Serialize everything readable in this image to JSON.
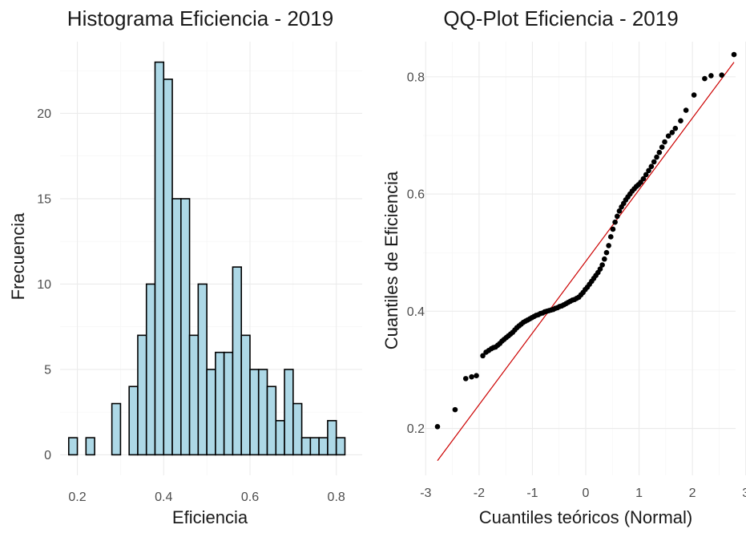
{
  "chart_data": [
    {
      "type": "bar",
      "title": "Histograma Eficiencia - 2019",
      "xlabel": "Eficiencia",
      "ylabel": "Frecuencia",
      "xlim": [
        0.16,
        0.86
      ],
      "ylim": [
        -1.2,
        24.2
      ],
      "bin_width": 0.02,
      "bin_centers": [
        0.19,
        0.21,
        0.23,
        0.25,
        0.27,
        0.29,
        0.31,
        0.33,
        0.35,
        0.37,
        0.39,
        0.41,
        0.43,
        0.45,
        0.47,
        0.49,
        0.51,
        0.53,
        0.55,
        0.57,
        0.59,
        0.61,
        0.63,
        0.65,
        0.67,
        0.69,
        0.71,
        0.73,
        0.75,
        0.77,
        0.79,
        0.81,
        0.83
      ],
      "values": [
        1,
        0,
        1,
        0,
        0,
        3,
        0,
        4,
        7,
        10,
        23,
        22,
        15,
        15,
        7,
        10,
        5,
        6,
        6,
        11,
        7,
        5,
        5,
        4,
        2,
        5,
        3,
        1,
        1,
        1,
        2,
        1,
        0
      ],
      "x_ticks": [
        0.2,
        0.4,
        0.6,
        0.8
      ],
      "x_tick_labels": [
        "0.2",
        "0.4",
        "0.6",
        "0.8"
      ],
      "y_ticks": [
        0,
        5,
        10,
        15,
        20
      ],
      "y_tick_labels": [
        "0",
        "5",
        "10",
        "15",
        "20"
      ],
      "fill_color": "#add8e6",
      "edge_color": "#000000",
      "grid": true
    },
    {
      "type": "scatter",
      "title": "QQ-Plot Eficiencia - 2019",
      "xlabel": "Cuantiles teóricos (Normal)",
      "ylabel": "Cuantiles de Eficiencia",
      "xlim": [
        -3.05,
        3.05
      ],
      "ylim": [
        0.12,
        0.86
      ],
      "x_ticks": [
        -3,
        -2,
        -1,
        0,
        1,
        2,
        3
      ],
      "x_tick_labels": [
        "-3",
        "-2",
        "-1",
        "0",
        "1",
        "2",
        "3"
      ],
      "y_ticks": [
        0.2,
        0.4,
        0.6,
        0.8
      ],
      "y_tick_labels": [
        "0.2",
        "0.4",
        "0.6",
        "0.8"
      ],
      "reference_line": {
        "x": [
          -2.78,
          2.78
        ],
        "y": [
          0.145,
          0.825
        ],
        "color": "#cc0000"
      },
      "point_color": "#000000",
      "grid": true,
      "points": [
        [
          -2.78,
          0.203
        ],
        [
          -2.45,
          0.232
        ],
        [
          -2.25,
          0.285
        ],
        [
          -2.14,
          0.288
        ],
        [
          -2.05,
          0.29
        ],
        [
          -1.93,
          0.324
        ],
        [
          -1.87,
          0.33
        ],
        [
          -1.82,
          0.333
        ],
        [
          -1.77,
          0.336
        ],
        [
          -1.73,
          0.338
        ],
        [
          -1.69,
          0.339
        ],
        [
          -1.65,
          0.342
        ],
        [
          -1.61,
          0.345
        ],
        [
          -1.57,
          0.349
        ],
        [
          -1.53,
          0.352
        ],
        [
          -1.49,
          0.355
        ],
        [
          -1.45,
          0.358
        ],
        [
          -1.41,
          0.361
        ],
        [
          -1.37,
          0.364
        ],
        [
          -1.33,
          0.368
        ],
        [
          -1.29,
          0.372
        ],
        [
          -1.25,
          0.375
        ],
        [
          -1.21,
          0.378
        ],
        [
          -1.17,
          0.381
        ],
        [
          -1.13,
          0.383
        ],
        [
          -1.09,
          0.385
        ],
        [
          -1.05,
          0.387
        ],
        [
          -1.01,
          0.389
        ],
        [
          -0.97,
          0.391
        ],
        [
          -0.93,
          0.393
        ],
        [
          -0.89,
          0.394
        ],
        [
          -0.85,
          0.396
        ],
        [
          -0.81,
          0.397
        ],
        [
          -0.77,
          0.399
        ],
        [
          -0.73,
          0.4
        ],
        [
          -0.69,
          0.401
        ],
        [
          -0.65,
          0.402
        ],
        [
          -0.61,
          0.403
        ],
        [
          -0.57,
          0.405
        ],
        [
          -0.53,
          0.406
        ],
        [
          -0.49,
          0.408
        ],
        [
          -0.45,
          0.409
        ],
        [
          -0.41,
          0.411
        ],
        [
          -0.37,
          0.413
        ],
        [
          -0.33,
          0.415
        ],
        [
          -0.29,
          0.417
        ],
        [
          -0.25,
          0.419
        ],
        [
          -0.21,
          0.42
        ],
        [
          -0.17,
          0.422
        ],
        [
          -0.13,
          0.424
        ],
        [
          -0.09,
          0.428
        ],
        [
          -0.05,
          0.432
        ],
        [
          -0.01,
          0.437
        ],
        [
          0.03,
          0.441
        ],
        [
          0.07,
          0.446
        ],
        [
          0.11,
          0.451
        ],
        [
          0.15,
          0.456
        ],
        [
          0.19,
          0.461
        ],
        [
          0.23,
          0.466
        ],
        [
          0.27,
          0.472
        ],
        [
          0.31,
          0.479
        ],
        [
          0.35,
          0.489
        ],
        [
          0.39,
          0.5
        ],
        [
          0.43,
          0.512
        ],
        [
          0.47,
          0.527
        ],
        [
          0.51,
          0.54
        ],
        [
          0.55,
          0.552
        ],
        [
          0.59,
          0.562
        ],
        [
          0.63,
          0.571
        ],
        [
          0.67,
          0.578
        ],
        [
          0.71,
          0.584
        ],
        [
          0.75,
          0.59
        ],
        [
          0.79,
          0.595
        ],
        [
          0.83,
          0.6
        ],
        [
          0.87,
          0.605
        ],
        [
          0.91,
          0.609
        ],
        [
          0.95,
          0.613
        ],
        [
          0.99,
          0.616
        ],
        [
          1.03,
          0.62
        ],
        [
          1.08,
          0.626
        ],
        [
          1.13,
          0.633
        ],
        [
          1.18,
          0.64
        ],
        [
          1.23,
          0.647
        ],
        [
          1.28,
          0.655
        ],
        [
          1.33,
          0.663
        ],
        [
          1.38,
          0.671
        ],
        [
          1.43,
          0.68
        ],
        [
          1.48,
          0.689
        ],
        [
          1.55,
          0.699
        ],
        [
          1.62,
          0.705
        ],
        [
          1.68,
          0.712
        ],
        [
          1.78,
          0.725
        ],
        [
          1.88,
          0.743
        ],
        [
          2.03,
          0.769
        ],
        [
          2.23,
          0.797
        ],
        [
          2.35,
          0.802
        ],
        [
          2.55,
          0.803
        ],
        [
          2.78,
          0.838
        ]
      ]
    }
  ]
}
